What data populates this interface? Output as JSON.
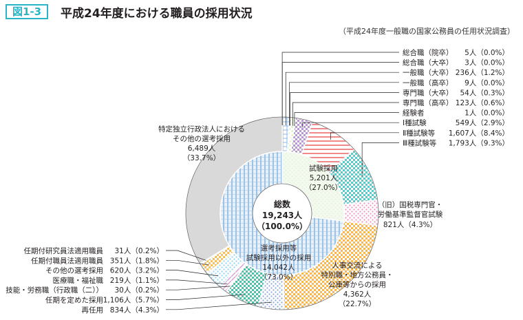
{
  "header": {
    "figure_number": "図1-3",
    "title": "平成24年度における職員の採用状況",
    "source": "（平成24年度一般職の国家公務員の任用状況調査）"
  },
  "chart_data": {
    "type": "pie",
    "style": "nested donut",
    "unit": "人",
    "center": {
      "label": "総数",
      "value": "19,243人",
      "percent": "（100.0%）",
      "total": 19243
    },
    "inner": [
      {
        "label": "試験採用",
        "value": 5201,
        "value_text": "5,201人",
        "percent": "（27.0%）",
        "color": "#e6f2dc"
      },
      {
        "label": "選考採用等\n試験採用以外の採用",
        "line1": "選考採用等",
        "line2": "試験採用以外の採用",
        "value": 14042,
        "value_text": "14,042人",
        "percent": "（73.0%）",
        "color": "#9cc3e6"
      }
    ],
    "outer": [
      {
        "label": "総合職（院卒）",
        "value": 5,
        "text": "5人（0.0%）",
        "color": "#9cc3e6",
        "side": "right"
      },
      {
        "label": "総合職（大卒）",
        "value": 3,
        "text": "3人（0.0%）",
        "color": "#9cc3e6",
        "side": "right"
      },
      {
        "label": "一般職（大卒）",
        "value": 236,
        "text": "236人（1.2%）",
        "color": "#8ab8e8",
        "side": "right"
      },
      {
        "label": "一般職（高卒）",
        "value": 9,
        "text": "9人（0.0%）",
        "color": "#b5d98a",
        "side": "right"
      },
      {
        "label": "専門職（大卒）",
        "value": 54,
        "text": "54人（0.3%）",
        "color": "#9ccf7a",
        "side": "right"
      },
      {
        "label": "専門職（高卒）",
        "value": 123,
        "text": "123人（0.6%）",
        "color": "#c8e6a8",
        "side": "right"
      },
      {
        "label": "経験者",
        "value": 1,
        "text": "1人（0.0%）",
        "color": "#999999",
        "side": "right"
      },
      {
        "label": "Ⅰ種試験",
        "value": 549,
        "text": "549人（2.9%）",
        "color": "#b899d4",
        "side": "right"
      },
      {
        "label": "Ⅱ種試験等",
        "value": 1607,
        "text": "1,607人（8.4%）",
        "color": "#f08a8a",
        "side": "right"
      },
      {
        "label": "Ⅲ種試験等",
        "value": 1793,
        "text": "1,793人（9.3%）",
        "color": "#5cc8c8",
        "side": "right"
      },
      {
        "label": "（旧）国税専門官・労働基準監督官試験",
        "line1": "（旧）国税専門官・",
        "line2": "労働基準監督官試験",
        "value": 821,
        "text": "821人（4.3%）",
        "color": "#f090c0",
        "side": "inline"
      },
      {
        "label": "人事交流による特別職・地方公務員・公庫等からの採用",
        "lines": [
          "人事交流による",
          "特別職・地方公務員・",
          "公庫等からの採用",
          "4,362人",
          "（22.7%）"
        ],
        "value": 4362,
        "text": "4,362人（22.7%）",
        "color": "#f7b64f",
        "side": "inline"
      },
      {
        "label": "再任用",
        "value": 834,
        "text": "834人（4.3%）",
        "color": "#8aa8d8",
        "side": "left"
      },
      {
        "label": "任期を定めた採用",
        "value": 1106,
        "text": "1,106人（5.7%）",
        "color": "#4fbfa8",
        "side": "left"
      },
      {
        "label": "技能・労務職（行政職（二））",
        "value": 30,
        "text": "30人（0.2%）",
        "color": "#7aa0c8",
        "side": "left"
      },
      {
        "label": "医療職・福祉職",
        "value": 219,
        "text": "219人（1.1%）",
        "color": "#d8a0d8",
        "side": "left"
      },
      {
        "label": "その他の選考採用",
        "value": 620,
        "text": "620人（3.2%）",
        "color": "#8fd4f0",
        "side": "left"
      },
      {
        "label": "任期付職員法適用職員",
        "value": 351,
        "text": "351人（1.8%）",
        "color": "#f5c060",
        "side": "left"
      },
      {
        "label": "任期付研究員法適用職員",
        "value": 31,
        "text": "31人（0.2%）",
        "color": "#c0a0d0",
        "side": "left"
      },
      {
        "label": "特定独立行政法人におけるその他の選考採用",
        "lines": [
          "特定独立行政法人における",
          "その他の選考採用",
          "6,489人",
          "（33.7%）"
        ],
        "value": 6489,
        "text": "6,489人（33.7%）",
        "color": "#d9d9d9",
        "side": "inline"
      }
    ]
  }
}
